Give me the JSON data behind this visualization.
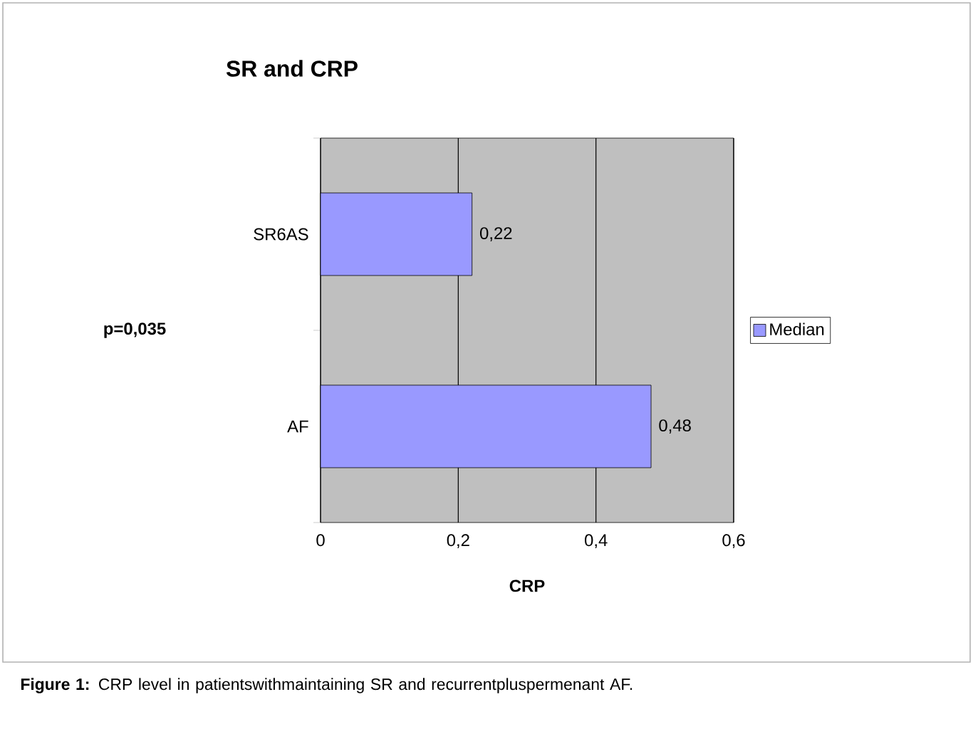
{
  "chart_data": {
    "type": "bar",
    "orientation": "horizontal",
    "title": "SR and CRP",
    "xlabel": "CRP",
    "categories": [
      "SR6AS",
      "AF"
    ],
    "series": [
      {
        "name": "Median",
        "color": "#9999ff",
        "values": [
          0.22,
          0.48
        ],
        "value_labels": [
          "0,22",
          "0,48"
        ]
      }
    ],
    "xlim": [
      0,
      0.6
    ],
    "xticks": [
      {
        "value": 0,
        "label": "0"
      },
      {
        "value": 0.2,
        "label": "0,2"
      },
      {
        "value": 0.4,
        "label": "0,4"
      },
      {
        "value": 0.6,
        "label": "0,6"
      }
    ],
    "grid": "x",
    "legend": "right",
    "annotations": [
      "p=0,035",
      "**Figure 1:** CRP level in patientswithmaintaining SR and recurrentpluspermenant AF."
    ]
  }
}
